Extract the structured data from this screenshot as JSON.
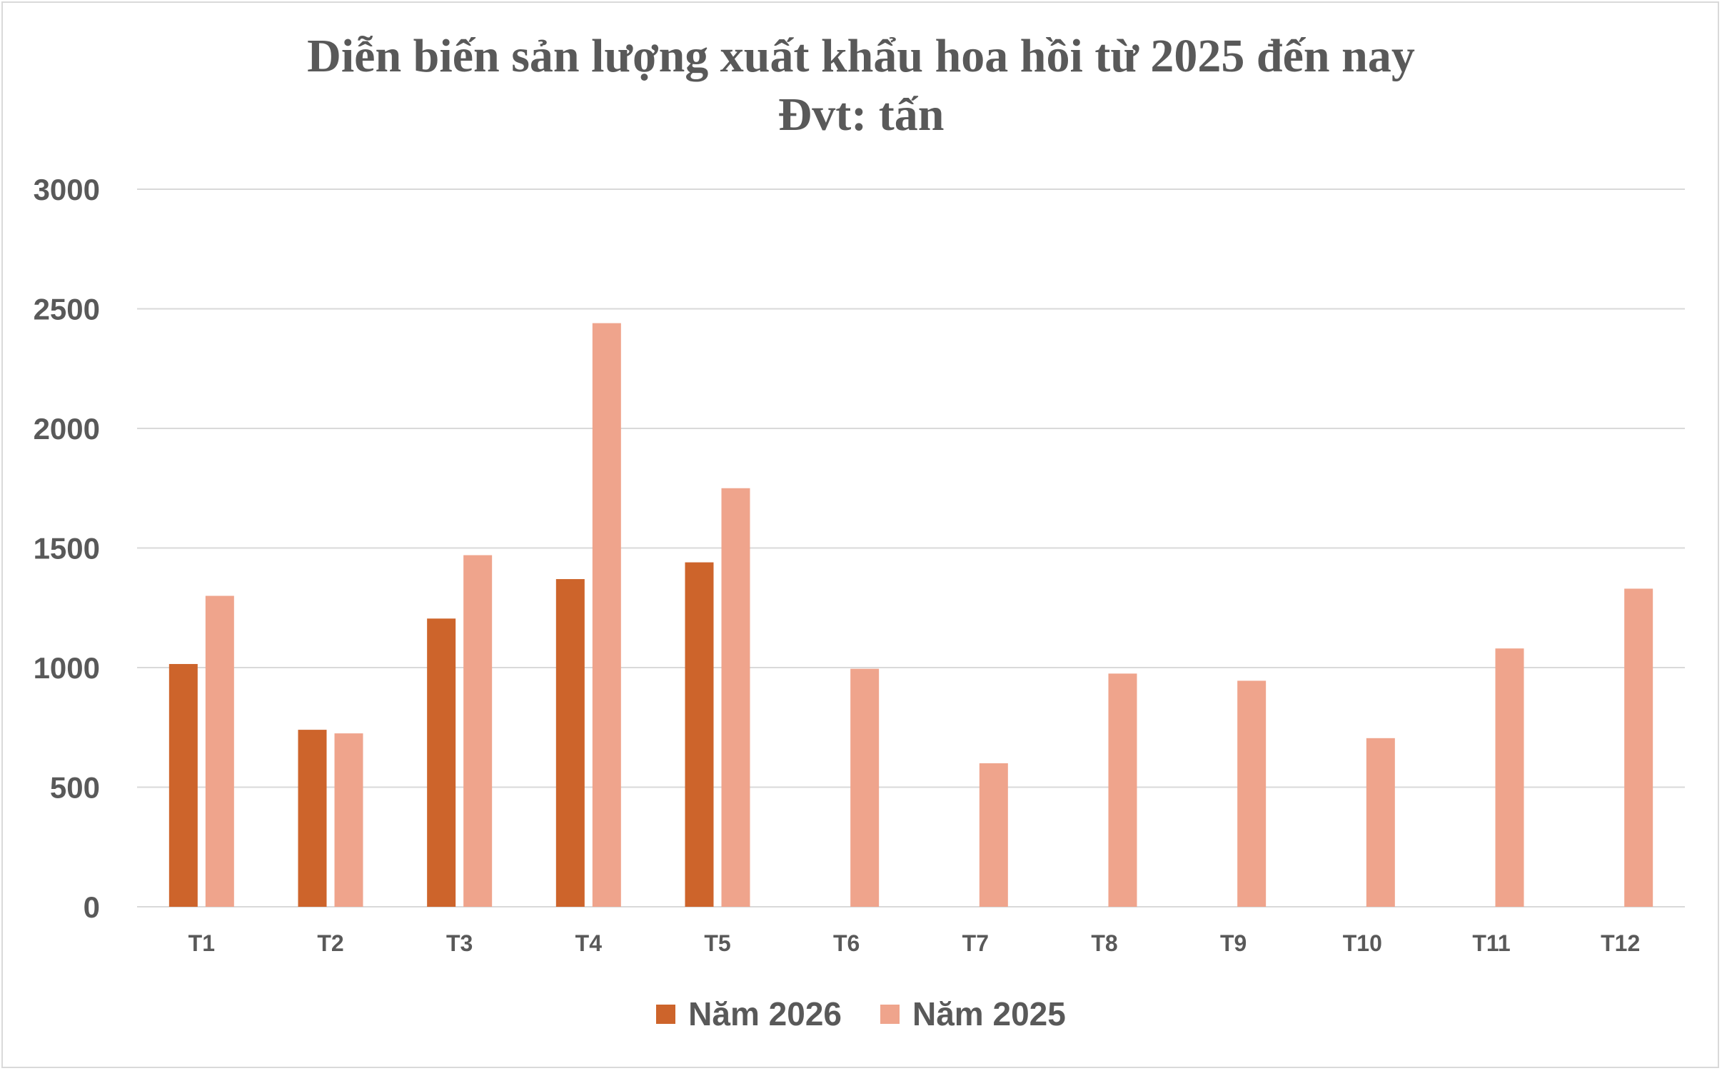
{
  "chart_data": {
    "type": "bar",
    "title": "Diễn biến sản lượng xuất khẩu hoa hồi từ 2025 đến nay",
    "subtitle": "Đvt: tấn",
    "categories": [
      "T1",
      "T2",
      "T3",
      "T4",
      "T5",
      "T6",
      "T7",
      "T8",
      "T9",
      "T10",
      "T11",
      "T12"
    ],
    "series": [
      {
        "name": "Năm 2026",
        "color": "#cd642b",
        "values": [
          1015,
          740,
          1205,
          1370,
          1440,
          null,
          null,
          null,
          null,
          null,
          null,
          null
        ]
      },
      {
        "name": "Năm 2025",
        "color": "#efa48c",
        "values": [
          1300,
          725,
          1470,
          2440,
          1750,
          995,
          600,
          975,
          945,
          705,
          1080,
          1330
        ]
      }
    ],
    "ylim": [
      0,
      3000
    ],
    "yticks": [
      0,
      500,
      1000,
      1500,
      2000,
      2500,
      3000
    ],
    "grid": true,
    "legend": "bottom"
  }
}
